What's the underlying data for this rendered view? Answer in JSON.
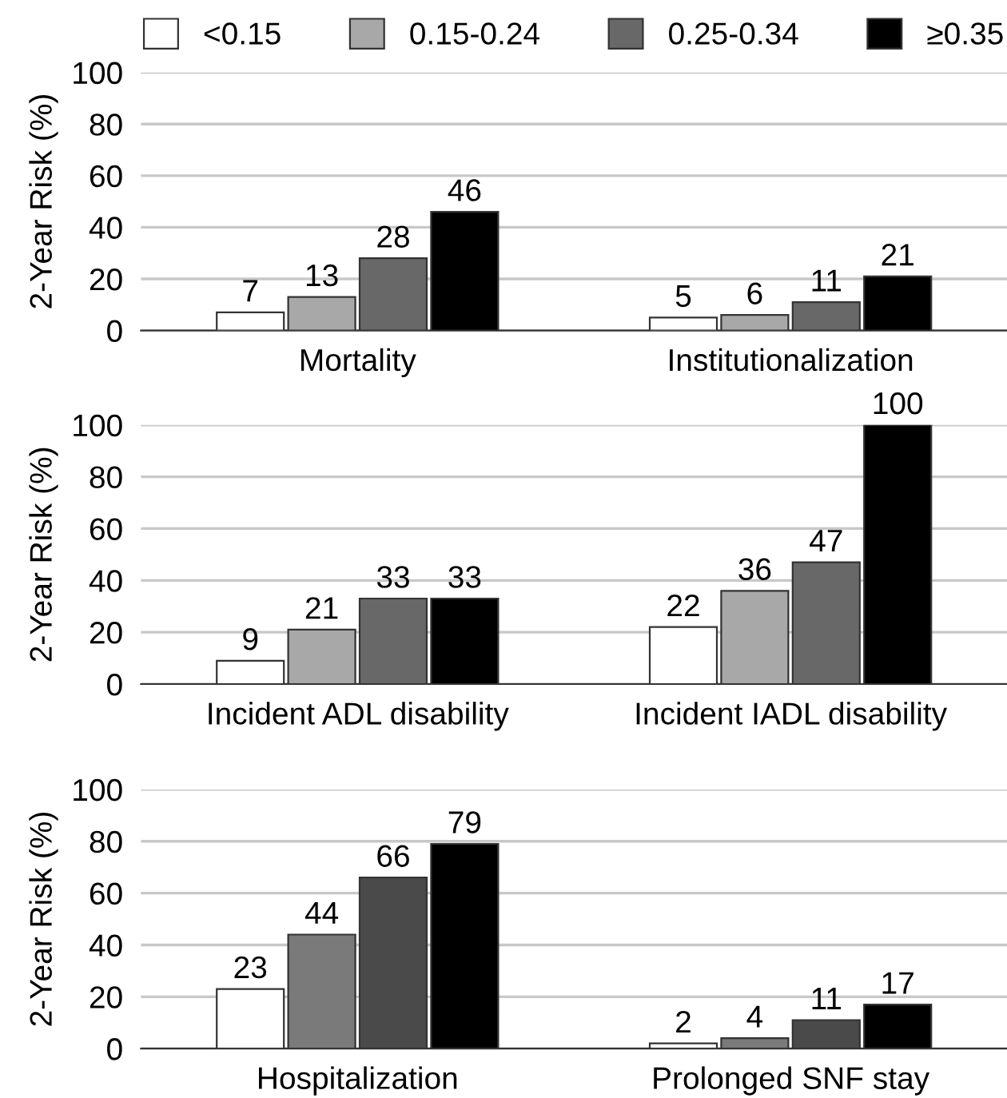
{
  "chart_data": [
    {
      "type": "bar",
      "ylabel": "2-Year Risk (%)",
      "categories": [
        "Mortality",
        "Institutionalization"
      ],
      "ylim": [
        0,
        100
      ],
      "yticks": [
        0,
        20,
        40,
        60,
        80,
        100
      ],
      "grid": "y",
      "legend": "top",
      "data_labels": true,
      "series": [
        {
          "name": "<0.15",
          "color": "#ffffff",
          "values": [
            7,
            5
          ]
        },
        {
          "name": "0.15-0.24",
          "color": "#a8a8a8",
          "values": [
            13,
            6
          ]
        },
        {
          "name": "0.25-0.34",
          "color": "#686868",
          "values": [
            28,
            11
          ]
        },
        {
          "name": "≥0.35",
          "color": "#000000",
          "values": [
            46,
            21
          ]
        }
      ]
    },
    {
      "type": "bar",
      "ylabel": "2-Year Risk (%)",
      "categories": [
        "Incident ADL disability",
        "Incident IADL disability"
      ],
      "ylim": [
        0,
        100
      ],
      "yticks": [
        0,
        20,
        40,
        60,
        80,
        100
      ],
      "grid": "y",
      "data_labels": true,
      "series": [
        {
          "color": "#ffffff",
          "values": [
            9,
            22
          ]
        },
        {
          "color": "#a8a8a8",
          "values": [
            21,
            36
          ]
        },
        {
          "color": "#686868",
          "values": [
            33,
            47
          ]
        },
        {
          "color": "#000000",
          "values": [
            33,
            100
          ]
        }
      ]
    },
    {
      "type": "bar",
      "ylabel": "2-Year Risk (%)",
      "categories": [
        "Hospitalization",
        "Prolonged SNF stay"
      ],
      "ylim": [
        0,
        100
      ],
      "yticks": [
        0,
        20,
        40,
        60,
        80,
        100
      ],
      "grid": "y",
      "data_labels": true,
      "series": [
        {
          "color": "#ffffff",
          "values": [
            23,
            2
          ]
        },
        {
          "color": "#7a7a7a",
          "values": [
            44,
            4
          ]
        },
        {
          "color": "#4a4a4a",
          "values": [
            66,
            11
          ]
        },
        {
          "color": "#000000",
          "values": [
            79,
            17
          ]
        }
      ]
    }
  ]
}
